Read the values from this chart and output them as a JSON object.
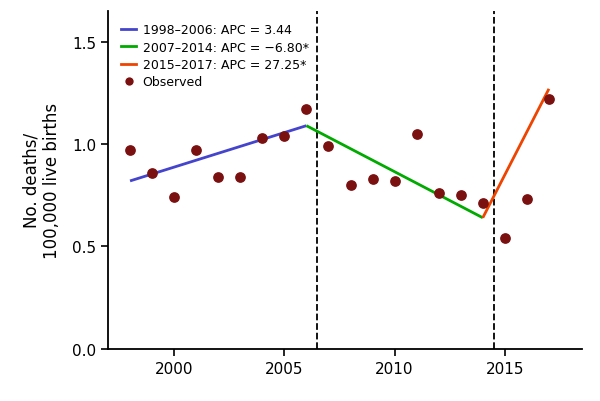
{
  "observed_years": [
    1998,
    1999,
    2000,
    2001,
    2002,
    2003,
    2004,
    2005,
    2006,
    2007,
    2008,
    2009,
    2010,
    2011,
    2012,
    2013,
    2014,
    2015,
    2016,
    2017
  ],
  "observed_values": [
    0.97,
    0.86,
    0.74,
    0.97,
    0.84,
    0.84,
    1.03,
    1.04,
    1.17,
    0.99,
    0.8,
    0.83,
    0.82,
    1.05,
    0.76,
    0.75,
    0.71,
    0.54,
    0.73,
    1.22
  ],
  "segment1_years": [
    1998,
    2006
  ],
  "segment1_values": [
    0.82,
    1.09
  ],
  "segment2_years": [
    2006,
    2014
  ],
  "segment2_values": [
    1.09,
    0.64
  ],
  "segment3_years": [
    2014,
    2017
  ],
  "segment3_values": [
    0.64,
    1.27
  ],
  "vline1": 2006.5,
  "vline2": 2014.5,
  "color_blue": "#4444cc",
  "color_green": "#00aa00",
  "color_red": "#ee4400",
  "color_dot": "#7a1010",
  "ylabel": "No. deaths/\n100,000 live births",
  "xlim": [
    1997.0,
    2018.5
  ],
  "ylim": [
    0,
    1.65
  ],
  "yticks": [
    0,
    0.5,
    1.0,
    1.5
  ],
  "xticks": [
    2000,
    2005,
    2010,
    2015
  ],
  "legend_labels": [
    "1998–2006: APC = 3.44",
    "2007–2014: APC = −6.80*",
    "2015–2017: APC = 27.25*",
    "Observed"
  ],
  "legend_colors": [
    "#4444cc",
    "#00aa00",
    "#ee4400",
    "#7a1010"
  ],
  "background_color": "#ffffff",
  "ylabel_fontsize": 12,
  "tick_fontsize": 11
}
